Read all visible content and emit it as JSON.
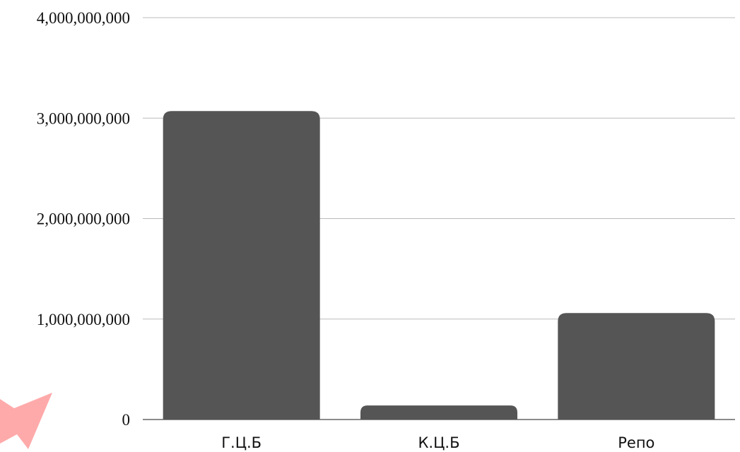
{
  "chart_data": {
    "type": "bar",
    "categories": [
      "Г.Ц.Б",
      "К.Ц.Б",
      "Репо"
    ],
    "values": [
      3070000000,
      140000000,
      1060000000
    ],
    "ylim": [
      0,
      4000000000
    ],
    "yticks": [
      0,
      1000000000,
      2000000000,
      3000000000,
      4000000000
    ],
    "ytick_labels": [
      "0",
      "1,000,000,000",
      "2,000,000,000",
      "3,000,000,000",
      "4,000,000,000"
    ],
    "grid": true,
    "legend": "none",
    "bar_color": "#555555",
    "grid_color": "#bbbbbb",
    "decoration_color": "#ffaaaa"
  }
}
